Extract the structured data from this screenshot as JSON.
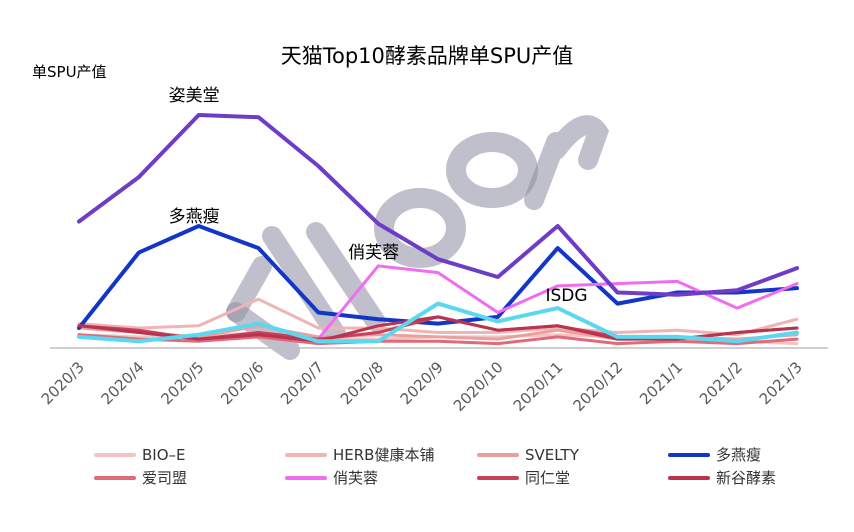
{
  "chart_data": {
    "type": "line",
    "title": "天猫Top10酵素品牌单SPU产值",
    "ylabel": "单SPU产值",
    "xlabel": "",
    "watermark": "bigone",
    "categories": [
      "2020/3",
      "2020/4",
      "2020/5",
      "2020/6",
      "2020/7",
      "2020/8",
      "2020/9",
      "2020/10",
      "2020/11",
      "2020/12",
      "2021/1",
      "2021/2",
      "2021/3"
    ],
    "ylim": [
      0,
      100
    ],
    "grid": false,
    "legend_position": "bottom",
    "annotations": [
      {
        "text": "姿美堂",
        "series": "姿美堂",
        "index": 2
      },
      {
        "text": "多燕瘦",
        "series": "多燕瘦",
        "index": 2
      },
      {
        "text": "俏芙蓉",
        "series": "俏芙蓉",
        "index": 5
      },
      {
        "text": "ISDG",
        "series": "ISDG",
        "index": 9
      }
    ],
    "series": [
      {
        "name": "BIO-E",
        "legend_label": "BIO–E",
        "color": "#f2c4c4",
        "width": 3,
        "legend": true,
        "values": [
          6,
          5,
          5,
          7,
          4,
          4,
          5,
          5,
          6,
          5,
          4,
          3,
          2
        ]
      },
      {
        "name": "HERB健康本铺",
        "color": "#f0b4b4",
        "width": 3,
        "legend": true,
        "values": [
          11,
          9,
          10,
          22,
          9,
          9,
          7,
          7,
          9,
          7,
          8,
          6,
          13
        ]
      },
      {
        "name": "SVELTY",
        "color": "#eba0a0",
        "width": 3,
        "legend": true,
        "values": [
          9,
          7,
          5,
          10,
          5,
          6,
          5,
          4,
          8,
          4,
          5,
          4,
          6
        ]
      },
      {
        "name": "多燕瘦",
        "color": "#1236c8",
        "width": 4,
        "legend": true,
        "values": [
          9,
          43,
          55,
          45,
          16,
          13,
          11,
          14,
          45,
          20,
          25,
          25,
          27
        ]
      },
      {
        "name": "爱司盟",
        "color": "#e06a78",
        "width": 3,
        "legend": true,
        "values": [
          6,
          4,
          3,
          5,
          2,
          3,
          3,
          2,
          5,
          2,
          3,
          2,
          4
        ]
      },
      {
        "name": "俏芙蓉",
        "color": "#f06cf0",
        "width": 3,
        "legend": true,
        "values": [
          null,
          null,
          null,
          null,
          4,
          37,
          34,
          16,
          28,
          29,
          30,
          18,
          29
        ]
      },
      {
        "name": "同仁堂",
        "color": "#c8405a",
        "width": 3,
        "legend": true,
        "values": [
          10,
          8,
          4,
          7,
          4,
          7,
          14,
          8,
          10,
          5,
          4,
          7,
          9
        ]
      },
      {
        "name": "新谷酵素",
        "color": "#b8344f",
        "width": 3,
        "legend": true,
        "values": [
          10,
          7,
          4,
          6,
          3,
          10,
          14,
          8,
          10,
          4,
          4,
          7,
          9
        ]
      },
      {
        "name": "姿美堂",
        "color": "#6e3cc6",
        "width": 4,
        "legend": false,
        "values": [
          57,
          77,
          105,
          104,
          82,
          56,
          40,
          32,
          55,
          25,
          24,
          26,
          36
        ]
      },
      {
        "name": "ISDG",
        "color": "#5ad8f0",
        "width": 4,
        "legend": false,
        "values": [
          5,
          3,
          6,
          11,
          3,
          3,
          20,
          12,
          18,
          5,
          5,
          3,
          7
        ]
      }
    ]
  }
}
